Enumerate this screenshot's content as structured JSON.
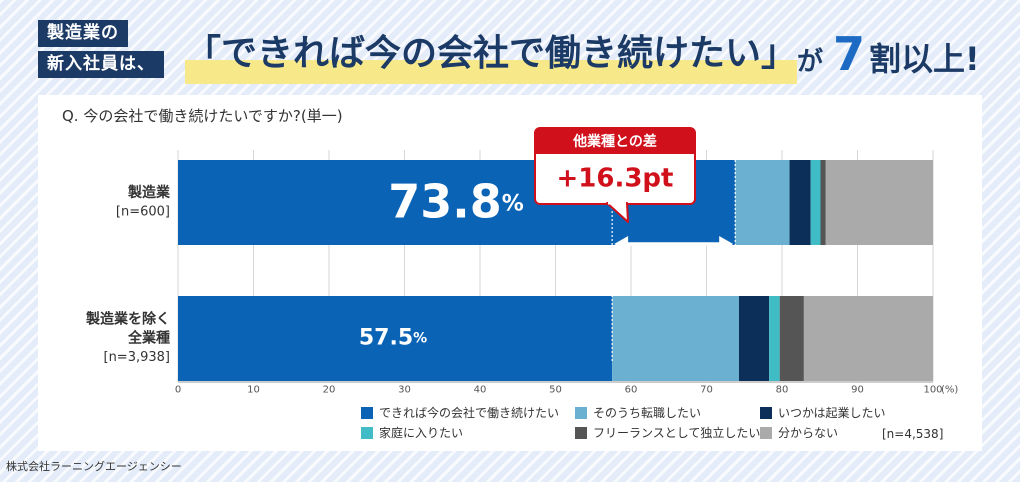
{
  "header": {
    "tag_line1": "製造業の",
    "tag_line2": "新入社員は、",
    "quote": "「できれば今の会社で働き続けたい」",
    "ga": "が",
    "num": "7",
    "tail": "割以上!"
  },
  "question": "Q. 今の会社で働き続けたいですか?(単一)",
  "credit": "株式会社ラーニングエージェンシー",
  "chart_data": {
    "type": "bar",
    "orientation": "horizontal",
    "stacked": true,
    "categories": [
      {
        "name_lines": [
          "製造業"
        ],
        "n": "[n=600]"
      },
      {
        "name_lines": [
          "製造業を除く",
          "全業種"
        ],
        "n": "[n=3,938]"
      }
    ],
    "series": [
      {
        "name": "できれば今の会社で働き続けたい",
        "color": "#0b63b5",
        "values": [
          73.8,
          57.5
        ]
      },
      {
        "name": "そのうち転職したい",
        "color": "#6bb0d0",
        "values": [
          7.2,
          16.8
        ]
      },
      {
        "name": "いつかは起業したい",
        "color": "#0c2f5a",
        "values": [
          2.8,
          4.0
        ]
      },
      {
        "name": "家庭に入りたい",
        "color": "#3fbcc6",
        "values": [
          1.3,
          1.4
        ]
      },
      {
        "name": "フリーランスとして独立したい",
        "color": "#555555",
        "values": [
          0.7,
          3.2
        ]
      },
      {
        "name": "分からない",
        "color": "#aaaaaa",
        "values": [
          14.2,
          17.1
        ]
      }
    ],
    "data_labels": [
      {
        "value": "73.8",
        "unit": "%"
      },
      {
        "value": "57.5",
        "unit": "%"
      }
    ],
    "xlim": [
      0,
      100
    ],
    "xticks": [
      0,
      10,
      20,
      30,
      40,
      50,
      60,
      70,
      80,
      90,
      100
    ],
    "x_unit": "(%)",
    "n_total": "[n=4,538]",
    "callout": {
      "title": "他業種との差",
      "value": "+16.3pt"
    }
  }
}
